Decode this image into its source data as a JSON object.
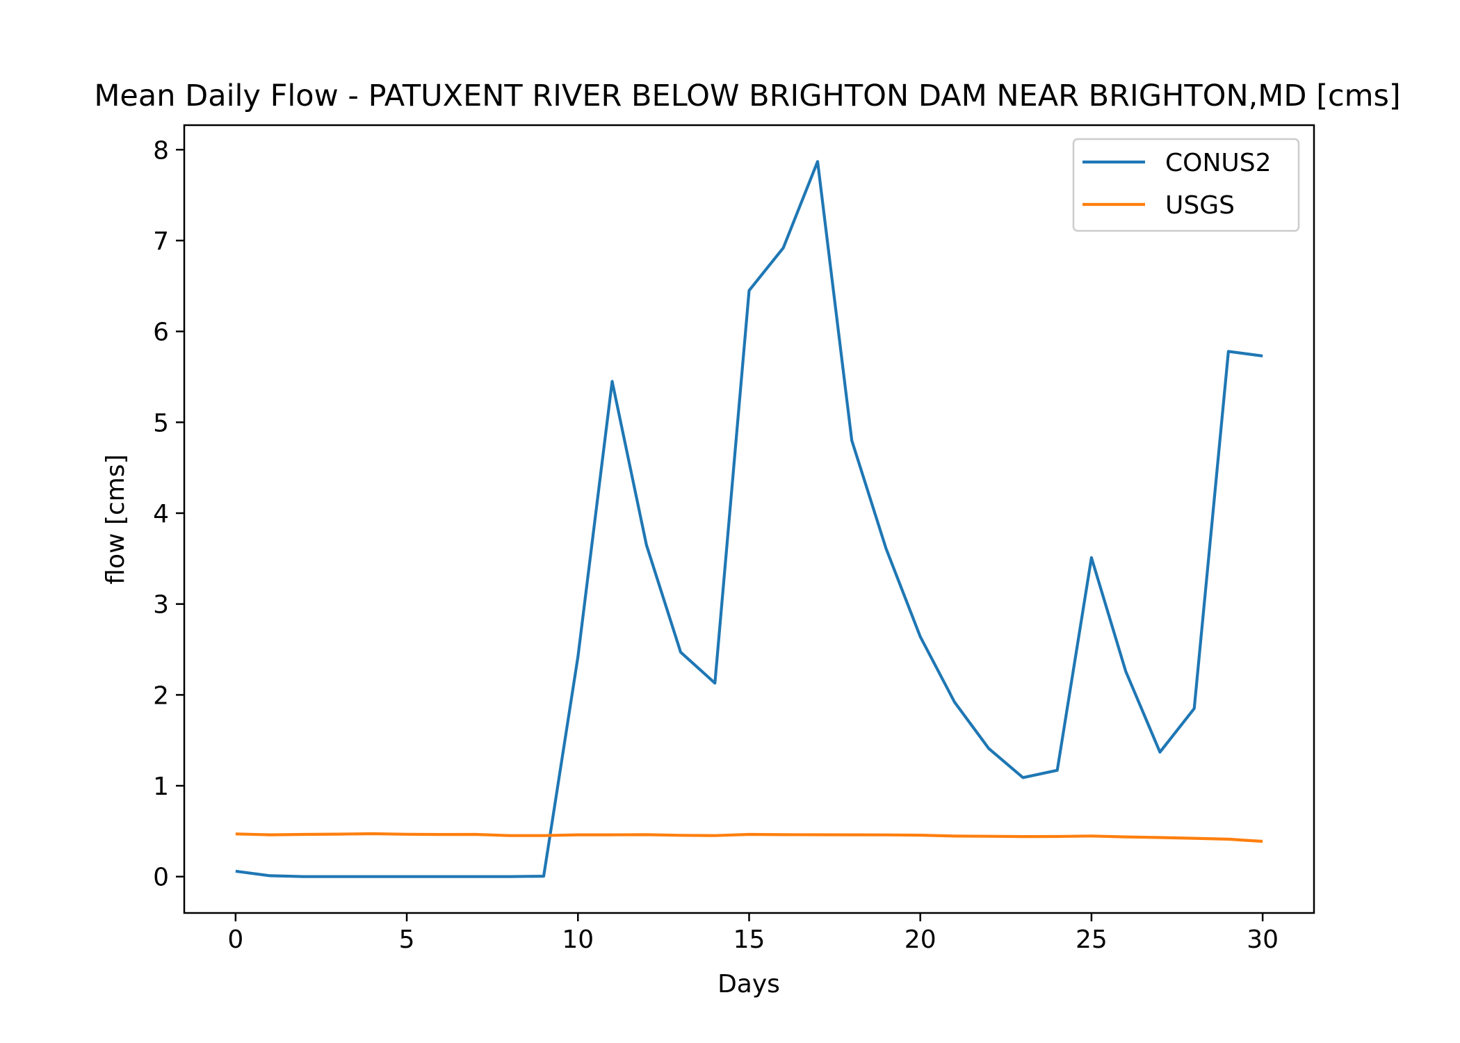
{
  "chart_data": {
    "type": "line",
    "title": "Mean Daily Flow - PATUXENT RIVER BELOW BRIGHTON DAM NEAR BRIGHTON,MD [cms]",
    "xlabel": "Days",
    "ylabel": "flow [cms]",
    "xlim": [
      -1.5,
      31.5
    ],
    "ylim": [
      -0.4,
      8.27
    ],
    "x_ticks": [
      0,
      5,
      10,
      15,
      20,
      25,
      30
    ],
    "y_ticks": [
      0,
      1,
      2,
      3,
      4,
      5,
      6,
      7,
      8
    ],
    "grid": false,
    "legend_position": "upper right",
    "x": [
      0,
      1,
      2,
      3,
      4,
      5,
      6,
      7,
      8,
      9,
      10,
      11,
      12,
      13,
      14,
      15,
      16,
      17,
      18,
      19,
      20,
      21,
      22,
      23,
      24,
      25,
      26,
      27,
      28,
      29,
      30
    ],
    "series": [
      {
        "name": "CONUS2",
        "color": "#1f77b4",
        "values": [
          0.06,
          0.01,
          0.0,
          0.0,
          0.0,
          0.0,
          0.0,
          0.0,
          0.0,
          0.005,
          2.42,
          5.45,
          3.65,
          2.47,
          2.13,
          6.45,
          6.92,
          7.87,
          4.8,
          3.61,
          2.64,
          1.92,
          1.41,
          1.09,
          1.17,
          3.51,
          2.26,
          1.37,
          1.85,
          5.78,
          5.73
        ]
      },
      {
        "name": "USGS",
        "color": "#ff7f0e",
        "values": [
          0.47,
          0.46,
          0.465,
          0.468,
          0.472,
          0.466,
          0.464,
          0.465,
          0.452,
          0.452,
          0.46,
          0.46,
          0.462,
          0.455,
          0.452,
          0.465,
          0.462,
          0.461,
          0.46,
          0.459,
          0.456,
          0.446,
          0.444,
          0.441,
          0.442,
          0.447,
          0.437,
          0.43,
          0.422,
          0.412,
          0.388
        ]
      }
    ]
  }
}
